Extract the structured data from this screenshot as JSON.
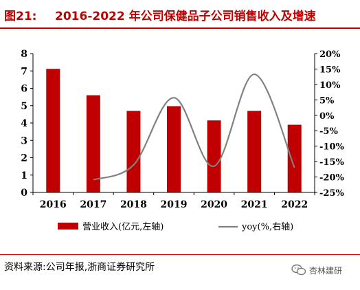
{
  "header": {
    "figure_number": "图21:",
    "title": "2016-2022 年公司保健品子公司销售收入及增速"
  },
  "source": "资料来源:公司年报,浙商证券研究所",
  "watermark": {
    "text": "杏林建研",
    "icon": "wechat-icon"
  },
  "colors": {
    "accent": "#c00000",
    "bar": "#c00000",
    "line": "#808080"
  },
  "chart_data": {
    "type": "bar",
    "categories": [
      "2016",
      "2017",
      "2018",
      "2019",
      "2020",
      "2021",
      "2022"
    ],
    "series": [
      {
        "name": "营业收入(亿元,左轴)",
        "type": "bar",
        "axis": "left",
        "values": [
          7.12,
          5.6,
          4.7,
          4.97,
          4.15,
          4.7,
          3.9
        ]
      },
      {
        "name": "yoy(%,右轴)",
        "type": "line",
        "axis": "right",
        "smooth": true,
        "values": [
          null,
          -20.9,
          -16.1,
          5.7,
          -16.5,
          13.3,
          -17.0
        ]
      }
    ],
    "left_axis": {
      "min": 0,
      "max": 8,
      "ticks": [
        "0",
        "1",
        "2",
        "3",
        "4",
        "5",
        "6",
        "7",
        "8"
      ]
    },
    "right_axis": {
      "min": -25,
      "max": 20,
      "ticks": [
        "-25%",
        "-20%",
        "-15%",
        "-10%",
        "-5%",
        "0%",
        "5%",
        "10%",
        "15%",
        "20%"
      ]
    },
    "legend": [
      "营业收入(亿元,左轴)",
      "yoy(%,右轴)"
    ],
    "legend_position": "bottom",
    "grid": false
  }
}
